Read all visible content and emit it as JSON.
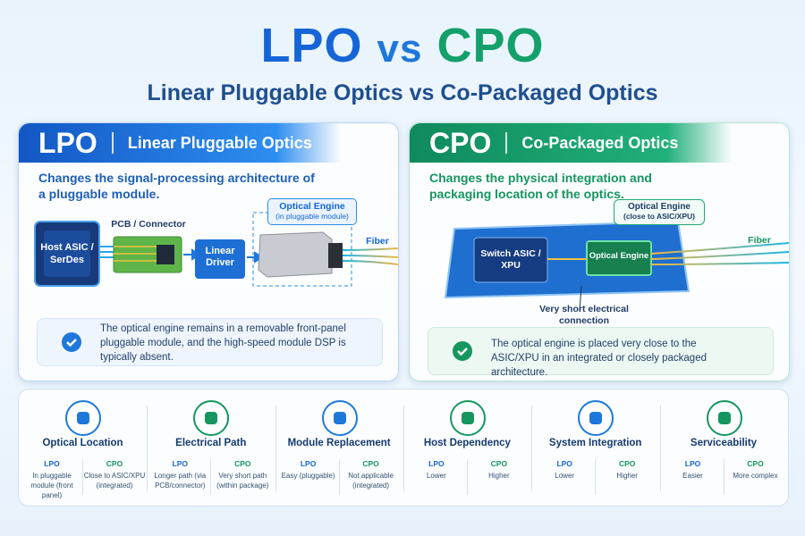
{
  "header": {
    "title_lpo": "LPO",
    "title_vs": "vs",
    "title_cpo": "CPO",
    "subtitle": "Linear Pluggable Optics vs Co-Packaged Optics"
  },
  "lpo": {
    "abbr": "LPO",
    "name": "Linear Pluggable Optics",
    "summary": "Changes the signal-processing architecture of a pluggable module.",
    "diagram": {
      "host": "Host ASIC / SerDes",
      "pcb": "PCB / Connector",
      "driver": "Linear Driver",
      "engine": "Optical Engine",
      "engine_note": "(in pluggable module)",
      "fiber": "Fiber"
    },
    "note": "The optical engine remains in a removable front-panel pluggable module, and the high-speed module DSP is typically absent."
  },
  "cpo": {
    "abbr": "CPO",
    "name": "Co-Packaged Optics",
    "summary": "Changes the physical integration and packaging location of the optics.",
    "diagram": {
      "asic": "Switch ASIC / XPU",
      "engine_label": "Optical Engine",
      "engine_note": "(close to ASIC/XPU)",
      "engine": "Optical Engine",
      "fiber": "Fiber",
      "connection": "Very short electrical connection"
    },
    "note": "The optical engine is placed very close to the ASIC/XPU in an integrated or closely packaged architecture."
  },
  "comparison": [
    {
      "title": "Optical Location",
      "lpo_label": "LPO",
      "lpo": "In pluggable module (front panel)",
      "cpo_label": "CPO",
      "cpo": "Close to ASIC/XPU (integrated)"
    },
    {
      "title": "Electrical Path",
      "lpo_label": "LPO",
      "lpo": "Longer path (via PCB/connector)",
      "cpo_label": "CPO",
      "cpo": "Very short path (within package)"
    },
    {
      "title": "Module Replacement",
      "lpo_label": "LPO",
      "lpo": "Easy (pluggable)",
      "cpo_label": "CPO",
      "cpo": "Not applicable (integrated)"
    },
    {
      "title": "Host Dependency",
      "lpo_label": "LPO",
      "lpo": "Lower",
      "cpo_label": "CPO",
      "cpo": "Higher"
    },
    {
      "title": "System Integration",
      "lpo_label": "LPO",
      "lpo": "Lower",
      "cpo_label": "CPO",
      "cpo": "Higher"
    },
    {
      "title": "Serviceability",
      "lpo_label": "LPO",
      "lpo": "Easier",
      "cpo_label": "CPO",
      "cpo": "More complex"
    }
  ]
}
